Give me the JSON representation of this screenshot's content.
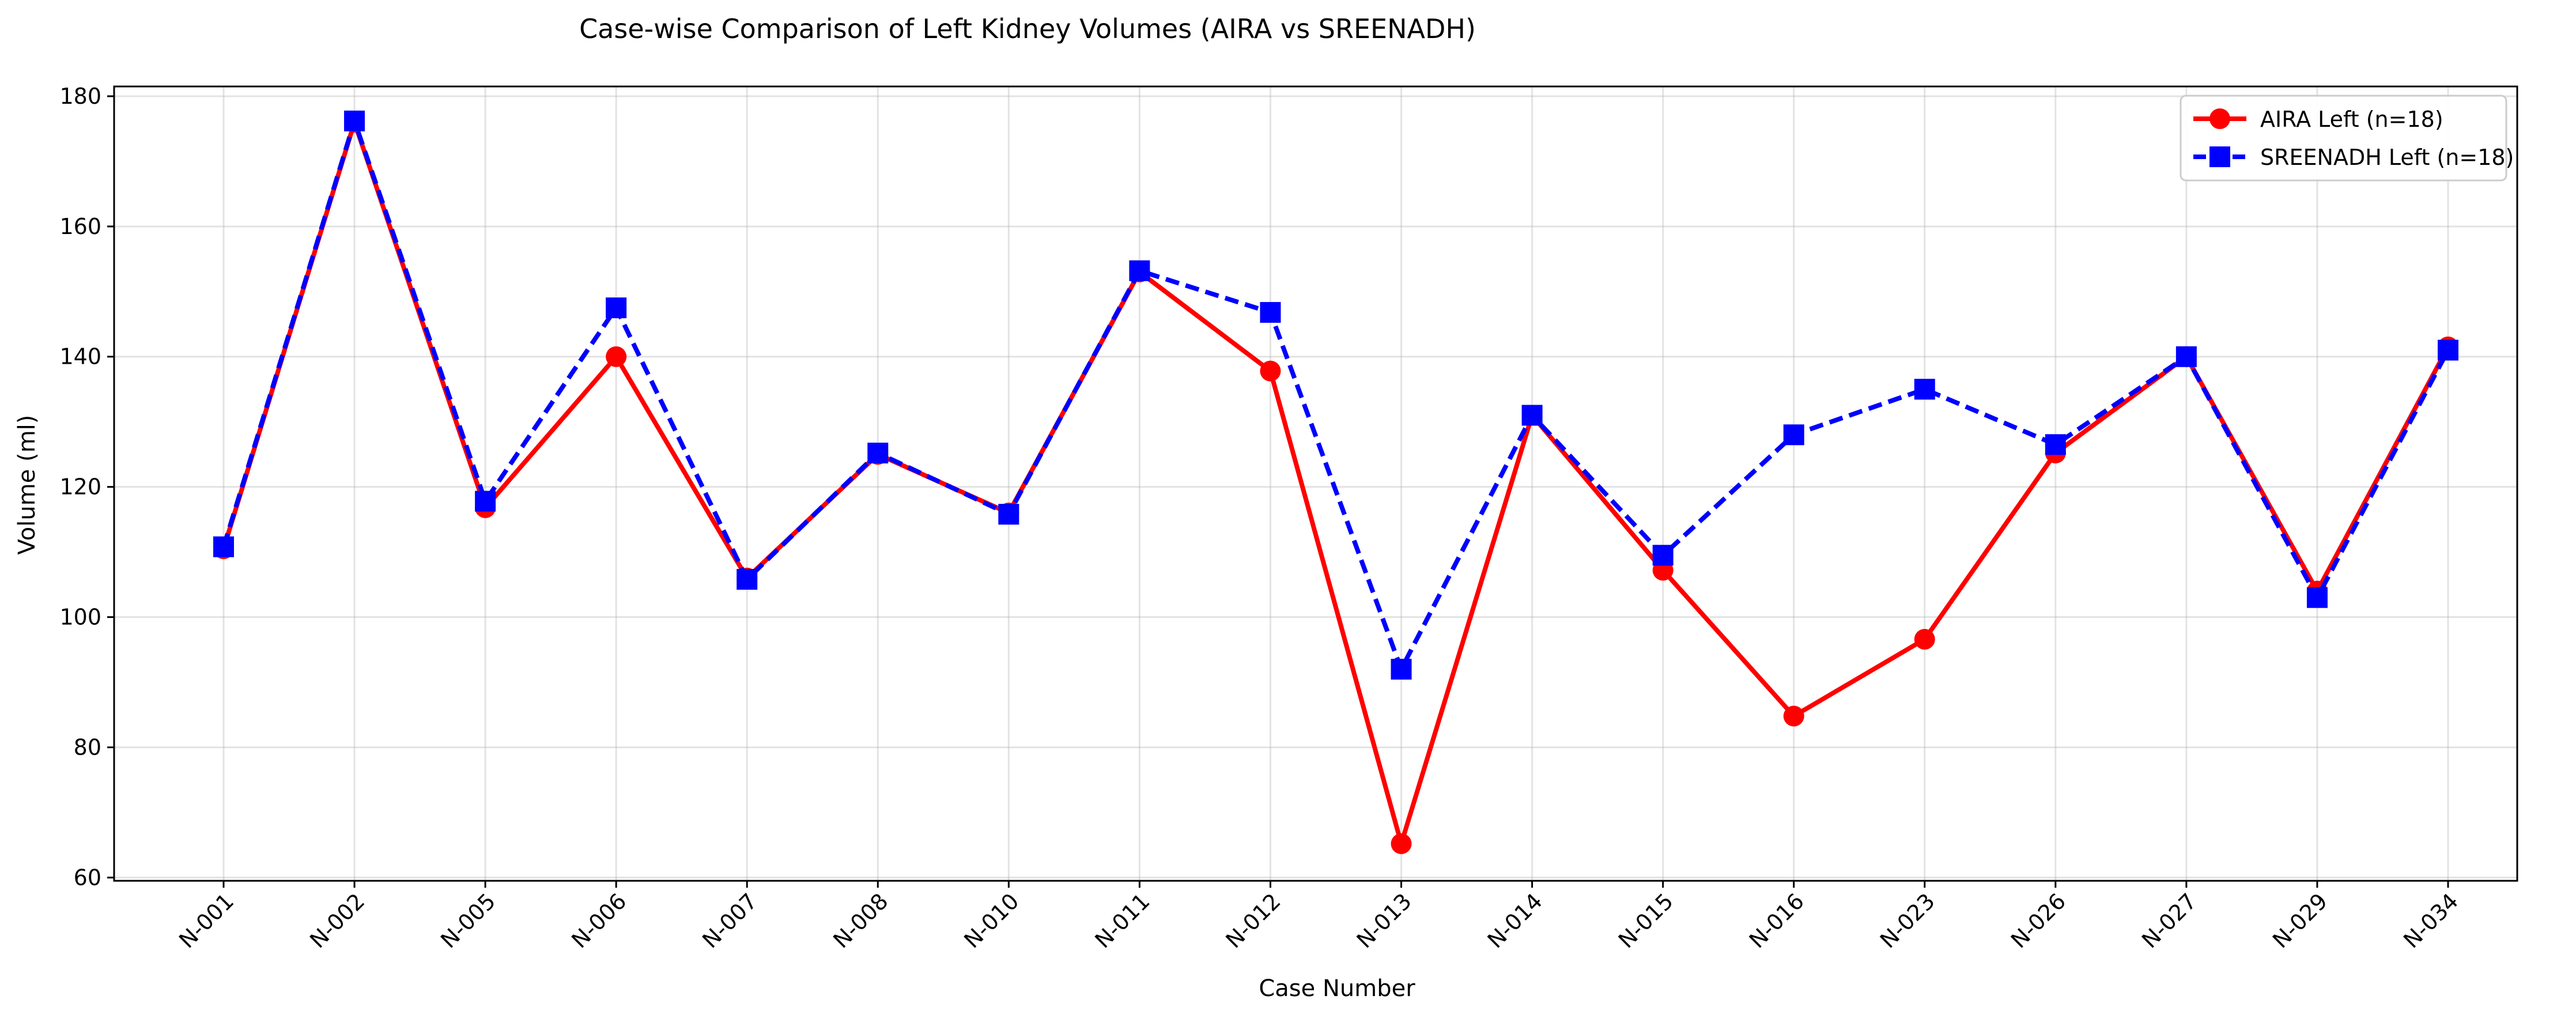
{
  "chart_data": {
    "type": "line",
    "title": "Case-wise Comparison of Left Kidney Volumes (AIRA vs SREENADH)",
    "xlabel": "Case Number",
    "ylabel": "Volume (ml)",
    "ylim": [
      59.5,
      181.5
    ],
    "yticks": [
      60,
      80,
      100,
      120,
      140,
      160,
      180
    ],
    "grid": true,
    "legend_position": "top-right",
    "categories": [
      "N-001",
      "N-002",
      "N-005",
      "N-006",
      "N-007",
      "N-008",
      "N-010",
      "N-011",
      "N-012",
      "N-013",
      "N-014",
      "N-015",
      "N-016",
      "N-023",
      "N-026",
      "N-027",
      "N-029",
      "N-034"
    ],
    "series": [
      {
        "name": "AIRA Left (n=18)",
        "color": "#ff0000",
        "marker": "circle",
        "line_style": "solid",
        "values": [
          110.5,
          176.0,
          116.8,
          140.0,
          106.0,
          125.0,
          116.0,
          153.0,
          137.8,
          65.2,
          131.0,
          107.2,
          84.8,
          96.6,
          125.2,
          140.0,
          104.0,
          141.5
        ]
      },
      {
        "name": "SREENADH Left (n=18)",
        "color": "#0000ff",
        "marker": "square",
        "line_style": "dashed",
        "values": [
          110.8,
          176.2,
          117.8,
          147.5,
          105.8,
          125.2,
          115.8,
          153.2,
          146.8,
          92.0,
          131.0,
          109.5,
          128.0,
          135.0,
          126.5,
          140.0,
          103.0,
          141.0
        ]
      }
    ]
  }
}
